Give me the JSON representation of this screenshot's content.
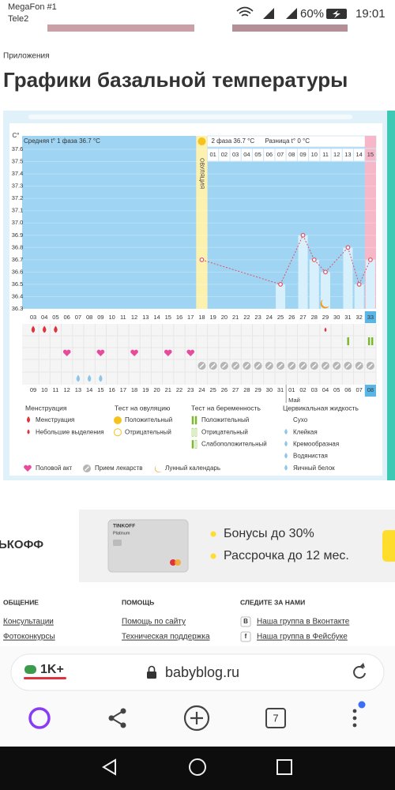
{
  "status_bar": {
    "carrier_1": "MegaFon #1",
    "carrier_2": "Tele2",
    "battery": "60%",
    "time": "19:01"
  },
  "breadcrumb": "Приложения",
  "title": "Графики базальной температуры",
  "chart": {
    "type": "line",
    "y_unit": "C°",
    "phase1_label": "Средняя t° 1 фаза 36.7 °C",
    "ovulation_label": "ОВУЛЯЦИЯ",
    "phase2_label": "2 фаза 36.7 °C",
    "difference_label": "Разница t° 0 °C",
    "ylim": [
      36.3,
      37.6
    ],
    "yticks": [
      37.6,
      37.5,
      37.4,
      37.3,
      37.2,
      37.1,
      {
        "value": 37,
        "label": "37.0"
      },
      36.9,
      36.8,
      36.7,
      36.6,
      36.5,
      36.4,
      36.3
    ],
    "phase2_days": [
      "01",
      "02",
      "03",
      "04",
      "05",
      "06",
      "07",
      "08",
      "09",
      "10",
      "11",
      "12",
      "13",
      "14",
      "15"
    ],
    "cycle_days": [
      "03",
      "04",
      "05",
      "06",
      "07",
      "08",
      "09",
      "10",
      "11",
      "12",
      "13",
      "14",
      "15",
      "16",
      "17",
      "18",
      "19",
      "20",
      "21",
      "22",
      "23",
      "24",
      "25",
      "26",
      "27",
      "28",
      "29",
      "30",
      "31",
      "32",
      "33"
    ],
    "dates": [
      "09",
      "10",
      "11",
      "12",
      "13",
      "14",
      "15",
      "16",
      "17",
      "18",
      "19",
      "20",
      "21",
      "22",
      "23",
      "24",
      "25",
      "26",
      "27",
      "28",
      "29",
      "30",
      "31",
      "01",
      "02",
      "03",
      "04",
      "05",
      "06",
      "07",
      "08"
    ],
    "month_label": "Май",
    "temperatures": [
      null,
      null,
      null,
      null,
      null,
      null,
      null,
      null,
      null,
      null,
      null,
      null,
      null,
      null,
      null,
      36.7,
      null,
      null,
      null,
      null,
      null,
      null,
      36.5,
      null,
      36.9,
      36.7,
      36.6,
      null,
      36.8,
      36.5,
      36.7
    ],
    "point_color": "#e0506a",
    "background_color": "#9fd5f3",
    "bar_color": "#d8f0fc"
  },
  "legend": {
    "menstruation": {
      "title": "Менструация",
      "items": [
        "Менструация",
        "Небольшие выделения"
      ]
    },
    "ovulation_test": {
      "title": "Тест на овуляцию",
      "items": [
        "Положительный",
        "Отрицательный"
      ]
    },
    "pregnancy_test": {
      "title": "Тест на беременность",
      "items": [
        "Положительный",
        "Отрицательный",
        "Слабоположительный"
      ]
    },
    "cervical_fluid": {
      "title": "Цервикальная жидкость",
      "items": [
        "Сухо",
        "Клейкая",
        "Кремообразная",
        "Водянистая",
        "Яичный белок"
      ]
    },
    "other": [
      "Половой акт",
      "Прием лекарств",
      "Лунный календарь"
    ]
  },
  "ad": {
    "brand": "ЬКОФФ",
    "card_brand": "TINKOFF",
    "card_tier": "Platinum",
    "bullets": [
      "Бонусы до 30%",
      "Рассрочка до 12 мес."
    ]
  },
  "footer": {
    "columns": [
      {
        "title": "ОБЩЕНИЕ",
        "links": [
          "Консультации",
          "Фотоконкурсы"
        ]
      },
      {
        "title": "ПОМОЩЬ",
        "links": [
          "Помощь по сайту",
          "Техническая поддержка"
        ]
      },
      {
        "title": "СЛЕДИТЕ ЗА НАМИ",
        "links": [
          "Наша группа в Вконтакте",
          "Наша группа в Фейсбуке"
        ],
        "icons": [
          "В",
          "f"
        ]
      }
    ]
  },
  "browser": {
    "comments": "1K+",
    "url": "babyblog.ru",
    "tabs": "7"
  }
}
